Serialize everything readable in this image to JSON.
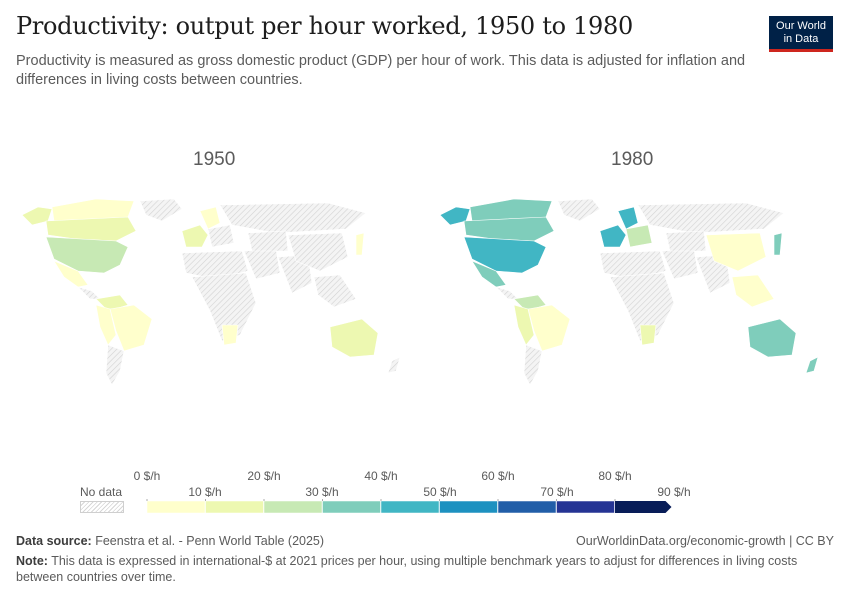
{
  "title": "Productivity: output per hour worked, 1950 to 1980",
  "subtitle": "Productivity is measured as gross domestic product (GDP) per hour of work. This data is adjusted for inflation and differences in living costs between countries.",
  "logo": {
    "line1": "Our World",
    "line2": "in Data"
  },
  "maps": [
    {
      "year": "1950"
    },
    {
      "year": "1980"
    }
  ],
  "legend": {
    "no_data_label": "No data",
    "upper_ticks": [
      "0 $/h",
      "20 $/h",
      "40 $/h",
      "60 $/h",
      "80 $/h"
    ],
    "lower_ticks": [
      "10 $/h",
      "30 $/h",
      "50 $/h",
      "70 $/h",
      "90 $/h"
    ],
    "bin_colors": [
      "#ffffcc",
      "#edf8b1",
      "#c7e9b4",
      "#7fcdbb",
      "#41b6c4",
      "#1d91c0",
      "#225ea8",
      "#253494",
      "#081d58"
    ],
    "no_data_color": "#e6e6e6"
  },
  "footer": {
    "source_label": "Data source:",
    "source_text": "Feenstra et al. - Penn World Table (2025)",
    "link": "OurWorldinData.org/economic-growth | CC BY",
    "note_label": "Note:",
    "note_text": "This data is expressed in international-$ at 2021 prices per hour, using multiple benchmark years to adjust for differences in living costs between countries over time."
  }
}
